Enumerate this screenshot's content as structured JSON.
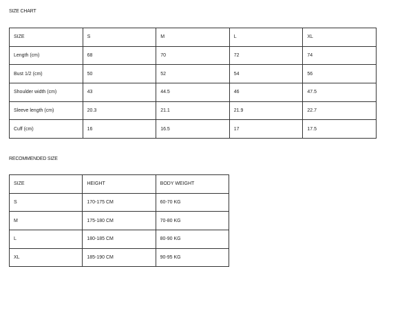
{
  "size_chart": {
    "title": "SIZE CHART",
    "rows": [
      [
        "SIZE",
        "S",
        "M",
        "L",
        "XL"
      ],
      [
        "Length (cm)",
        "68",
        "70",
        "72",
        "74"
      ],
      [
        "Bust 1/2 (cm)",
        "50",
        "52",
        "54",
        "56"
      ],
      [
        "Shoulder width (cm)",
        "43",
        "44.5",
        "46",
        "47.5"
      ],
      [
        "Sleeve length (cm)",
        "20.3",
        "21.1",
        "21.9",
        "22.7"
      ],
      [
        "Cuff (cm)",
        "16",
        "16.5",
        "17",
        "17.5"
      ]
    ]
  },
  "recommended_size": {
    "title": "RECOMMENDED SIZE",
    "rows": [
      [
        "SIZE",
        "HEIGHT",
        "BODY WEIGHT"
      ],
      [
        "S",
        "170-175 CM",
        "60-70 KG"
      ],
      [
        "M",
        "175-180 CM",
        "70-80 KG"
      ],
      [
        "L",
        "180-185 CM",
        "80-90 KG"
      ],
      [
        "XL",
        "185-190 CM",
        "90-95 KG"
      ]
    ]
  }
}
